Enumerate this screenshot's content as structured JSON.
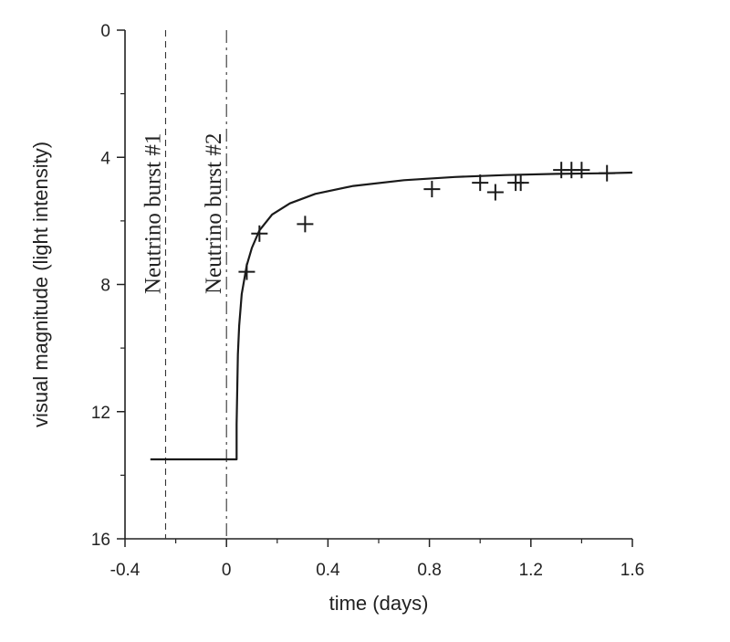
{
  "chart_data": {
    "type": "line",
    "xlabel": "time (days)",
    "ylabel": "visual magnitude (light intensity)",
    "xlim": [
      -0.4,
      1.6
    ],
    "ylim": [
      16,
      0
    ],
    "y_inverted": true,
    "x_ticks": [
      "-0.4",
      "0",
      "0.4",
      "0.8",
      "1.2",
      "1.6"
    ],
    "y_ticks": [
      "0",
      "4",
      "8",
      "12",
      "16"
    ],
    "grid": false,
    "legend": "none",
    "annotations": [
      {
        "text": "Neutrino burst #1",
        "x": -0.24,
        "style": "dashed"
      },
      {
        "text": "Neutrino burst #2",
        "x": 0.0,
        "style": "dash-dot"
      }
    ],
    "series": [
      {
        "type": "line",
        "x": [
          -0.3,
          0.04,
          0.04,
          0.045,
          0.05,
          0.06,
          0.08,
          0.1,
          0.13,
          0.18,
          0.25,
          0.35,
          0.5,
          0.7,
          0.9,
          1.1,
          1.3,
          1.5,
          1.6
        ],
        "y": [
          13.5,
          13.5,
          12.4,
          10.2,
          9.3,
          8.3,
          7.4,
          6.85,
          6.3,
          5.8,
          5.45,
          5.15,
          4.9,
          4.72,
          4.62,
          4.56,
          4.52,
          4.5,
          4.48
        ]
      },
      {
        "type": "scatter",
        "marker": "+",
        "x": [
          0.08,
          0.13,
          0.31,
          0.81,
          1.0,
          1.06,
          1.14,
          1.16,
          1.32,
          1.36,
          1.4,
          1.5
        ],
        "y": [
          7.6,
          6.4,
          6.1,
          5.0,
          4.8,
          5.1,
          4.8,
          4.8,
          4.4,
          4.4,
          4.4,
          4.5
        ]
      }
    ]
  }
}
